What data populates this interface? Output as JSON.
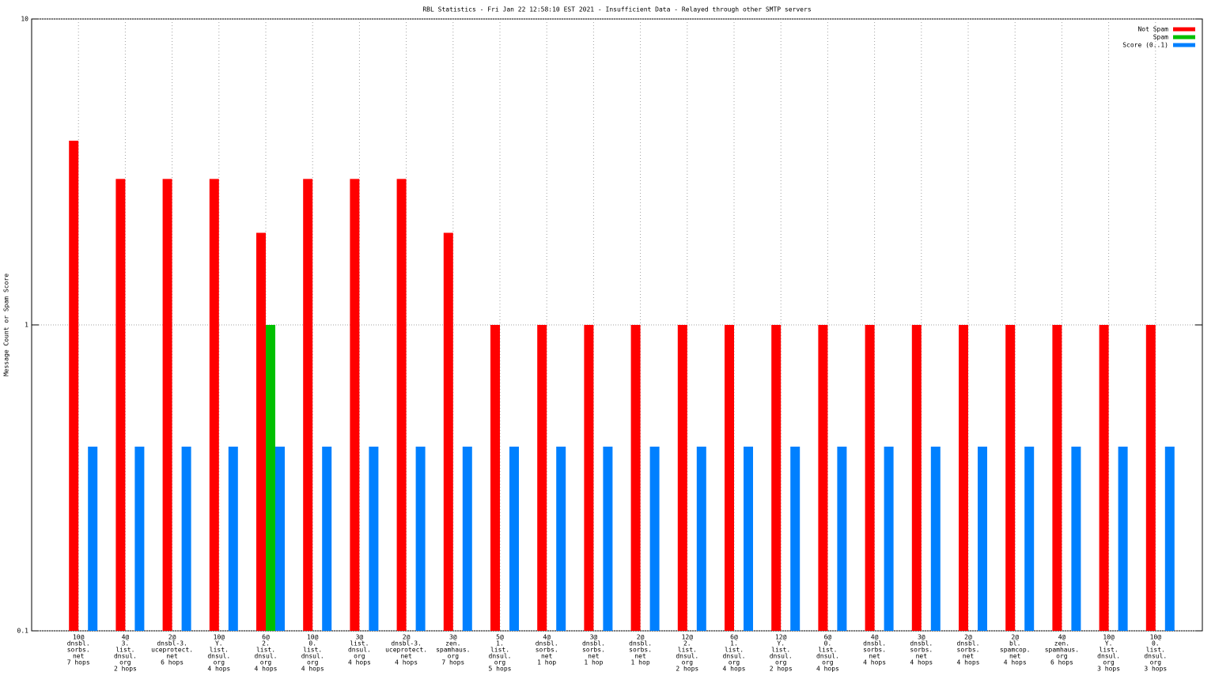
{
  "chart_data": {
    "type": "bar",
    "title": "RBL Statistics - Fri Jan 22 12:58:10 EST 2021 - Insufficient Data - Relayed through other SMTP servers",
    "y_label": "Message Count or Spam Score",
    "categories": [
      [
        "10@",
        "dnsbl.",
        "sorbs.",
        "net",
        "7 hops"
      ],
      [
        "4@",
        "3.",
        "list.",
        "dnsul.",
        "org",
        "2 hops"
      ],
      [
        "2@",
        "dnsbl-3.",
        "uceprotect.",
        "net",
        "6 hops"
      ],
      [
        "10@",
        "Y.",
        "list.",
        "dnsul.",
        "org",
        "4 hops"
      ],
      [
        "6@",
        "2.",
        "list.",
        "dnsul.",
        "org",
        "4 hops"
      ],
      [
        "10@",
        "0.",
        "list.",
        "dnsul.",
        "org",
        "4 hops"
      ],
      [
        "3@",
        "list.",
        "dnsul.",
        "org",
        "4 hops"
      ],
      [
        "2@",
        "dnsbl-3.",
        "uceprotect.",
        "net",
        "4 hops"
      ],
      [
        "3@",
        "zen.",
        "spamhaus.",
        "org",
        "7 hops"
      ],
      [
        "5@",
        "1.",
        "list.",
        "dnsul.",
        "org",
        "5 hops"
      ],
      [
        "4@",
        "dnsbl.",
        "sorbs.",
        "net",
        "1 hop"
      ],
      [
        "3@",
        "dnsbl.",
        "sorbs.",
        "net",
        "1 hop"
      ],
      [
        "2@",
        "dnsbl.",
        "sorbs.",
        "net",
        "1 hop"
      ],
      [
        "12@",
        "2.",
        "list.",
        "dnsul.",
        "org",
        "2 hops"
      ],
      [
        "6@",
        "1.",
        "list.",
        "dnsul.",
        "org",
        "4 hops"
      ],
      [
        "12@",
        "Y.",
        "list.",
        "dnsul.",
        "org",
        "2 hops"
      ],
      [
        "6@",
        "0.",
        "list.",
        "dnsul.",
        "org",
        "4 hops"
      ],
      [
        "4@",
        "dnsbl.",
        "sorbs.",
        "net",
        "4 hops"
      ],
      [
        "3@",
        "dnsbl.",
        "sorbs.",
        "net",
        "4 hops"
      ],
      [
        "2@",
        "dnsbl.",
        "sorbs.",
        "net",
        "4 hops"
      ],
      [
        "2@",
        "bl.",
        "spamcop.",
        "net",
        "4 hops"
      ],
      [
        "4@",
        "zen.",
        "spamhaus.",
        "org",
        "6 hops"
      ],
      [
        "10@",
        "Y.",
        "list.",
        "dnsul.",
        "org",
        "3 hops"
      ],
      [
        "10@",
        "0.",
        "list.",
        "dnsul.",
        "org",
        "3 hops"
      ]
    ],
    "series": [
      {
        "name": "Not Spam",
        "color": "#ff0000",
        "values": [
          4,
          3,
          3,
          3,
          2,
          3,
          3,
          3,
          2,
          1,
          1,
          1,
          1,
          1,
          1,
          1,
          1,
          1,
          1,
          1,
          1,
          1,
          1,
          1
        ]
      },
      {
        "name": "Spam",
        "color": "#00c000",
        "values": [
          null,
          null,
          null,
          null,
          1,
          null,
          null,
          null,
          null,
          null,
          null,
          null,
          null,
          null,
          null,
          null,
          null,
          null,
          null,
          null,
          null,
          null,
          null,
          null
        ]
      },
      {
        "name": "Score (0..1)",
        "color": "#0080ff",
        "values": [
          0.4,
          0.4,
          0.4,
          0.4,
          0.4,
          0.4,
          0.4,
          0.4,
          0.4,
          0.4,
          0.4,
          0.4,
          0.4,
          0.4,
          0.4,
          0.4,
          0.4,
          0.4,
          0.4,
          0.4,
          0.4,
          0.4,
          0.4,
          0.4
        ]
      }
    ],
    "ylim": [
      0.1,
      10
    ],
    "yticks": [
      0.1,
      1,
      10
    ],
    "log_y": true,
    "grid": true,
    "legend": "top-right"
  }
}
